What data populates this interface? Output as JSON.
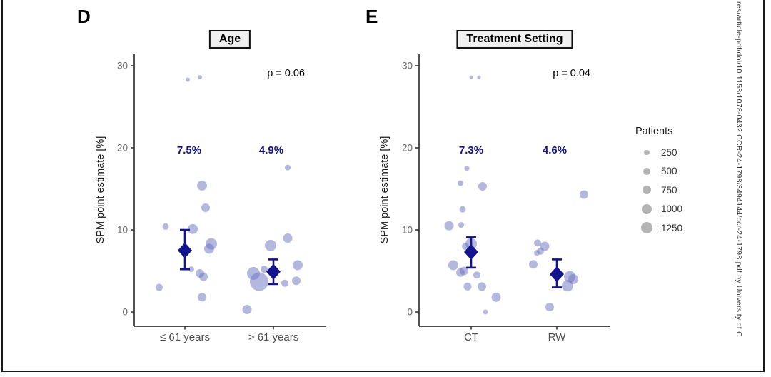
{
  "figure": {
    "watermark_text": "res/article-pdf/doi/10.1158/1078-0432.CCR-24-1798/3494144/ccr-24-1798.pdf by University of C",
    "colors": {
      "bubble": "rgba(105,112,190,0.5)",
      "navy": "#14148C",
      "axis": "#333333",
      "tick_label": "#666666",
      "category_label": "#4d4d4d",
      "legend_dot": "#b4b4b4",
      "title_box_bg": "#f0f0f0"
    }
  },
  "legend": {
    "title": "Patients",
    "items": [
      {
        "label": "250",
        "r": 3.7
      },
      {
        "label": "500",
        "r": 5
      },
      {
        "label": "750",
        "r": 6
      },
      {
        "label": "1000",
        "r": 7
      },
      {
        "label": "1250",
        "r": 8
      }
    ]
  },
  "chart_data": [
    {
      "panel_label": "D",
      "type": "scatter",
      "title": "Age",
      "p_label": "p = 0.06",
      "ylabel": "SPM point estimate [%]",
      "yticks": [
        0,
        10,
        20,
        30
      ],
      "ylim": [
        -1.7,
        31.5
      ],
      "size_legend": "Patients (250-1250), bubble area = n",
      "categories": [
        "≤ 61 years",
        "> 61 years"
      ],
      "groups": [
        {
          "category": "≤ 61 years",
          "estimate_label": "7.5%",
          "estimate": 7.5,
          "ci_low": 5.2,
          "ci_high": 10.0,
          "points": [
            [
              4,
              28.3,
              3
            ],
            [
              21,
              28.6,
              3
            ],
            [
              24,
              15.4,
              7
            ],
            [
              29,
              12.7,
              6
            ],
            [
              -27,
              10.4,
              4.5
            ],
            [
              11,
              10.1,
              7
            ],
            [
              37,
              8.3,
              8
            ],
            [
              34,
              7.7,
              7
            ],
            [
              9,
              5.2,
              4
            ],
            [
              21,
              4.7,
              6
            ],
            [
              26,
              4.3,
              6
            ],
            [
              -36,
              3.0,
              5
            ],
            [
              24,
              1.8,
              6
            ]
          ]
        },
        {
          "category": "> 61 years",
          "estimate_label": "4.9%",
          "estimate": 4.9,
          "ci_low": 3.4,
          "ci_high": 6.4,
          "points": [
            [
              20,
              17.6,
              4
            ],
            [
              20,
              9.0,
              6.5
            ],
            [
              -4,
              8.1,
              8
            ],
            [
              34,
              5.7,
              7
            ],
            [
              -13,
              5.2,
              5
            ],
            [
              -28,
              4.7,
              9
            ],
            [
              -20,
              3.7,
              13
            ],
            [
              16,
              3.5,
              5
            ],
            [
              32,
              3.8,
              6
            ],
            [
              -37,
              0.3,
              6.5
            ]
          ]
        }
      ]
    },
    {
      "panel_label": "E",
      "type": "scatter",
      "title": "Treatment Setting",
      "p_label": "p = 0.04",
      "ylabel": "SPM point estimate [%]",
      "yticks": [
        0,
        10,
        20,
        30
      ],
      "ylim": [
        -1.7,
        31.5
      ],
      "size_legend": "Patients (250-1250), bubble area = n",
      "categories": [
        "CT",
        "RW"
      ],
      "groups": [
        {
          "category": "CT",
          "estimate_label": "7.3%",
          "estimate": 7.3,
          "ci_low": 5.4,
          "ci_high": 9.1,
          "points": [
            [
              0,
              28.6,
              2.5
            ],
            [
              11,
              28.6,
              2.5
            ],
            [
              -6,
              17.5,
              3.5
            ],
            [
              -15,
              15.7,
              4
            ],
            [
              16,
              15.3,
              6
            ],
            [
              -12,
              12.5,
              4.5
            ],
            [
              -31,
              10.5,
              6.5
            ],
            [
              -14,
              10.6,
              4
            ],
            [
              0,
              8.3,
              8
            ],
            [
              -8,
              8.0,
              5
            ],
            [
              -25,
              5.7,
              7
            ],
            [
              -10,
              5.0,
              6
            ],
            [
              -15,
              4.8,
              6
            ],
            [
              8,
              4.5,
              5
            ],
            [
              -5,
              3.1,
              5.5
            ],
            [
              15,
              3.1,
              6
            ],
            [
              35,
              1.8,
              6.5
            ],
            [
              20,
              0.0,
              3.5
            ]
          ]
        },
        {
          "category": "RW",
          "estimate_label": "4.6%",
          "estimate": 4.6,
          "ci_low": 3.0,
          "ci_high": 6.4,
          "points": [
            [
              38,
              14.3,
              6
            ],
            [
              -27,
              8.4,
              5
            ],
            [
              -17,
              8.0,
              6.5
            ],
            [
              -23,
              7.4,
              5
            ],
            [
              -28,
              7.2,
              4
            ],
            [
              -33,
              5.8,
              6
            ],
            [
              18,
              4.3,
              8
            ],
            [
              23,
              4.0,
              7
            ],
            [
              15,
              3.2,
              8
            ],
            [
              -10,
              0.6,
              6
            ]
          ]
        }
      ]
    }
  ]
}
